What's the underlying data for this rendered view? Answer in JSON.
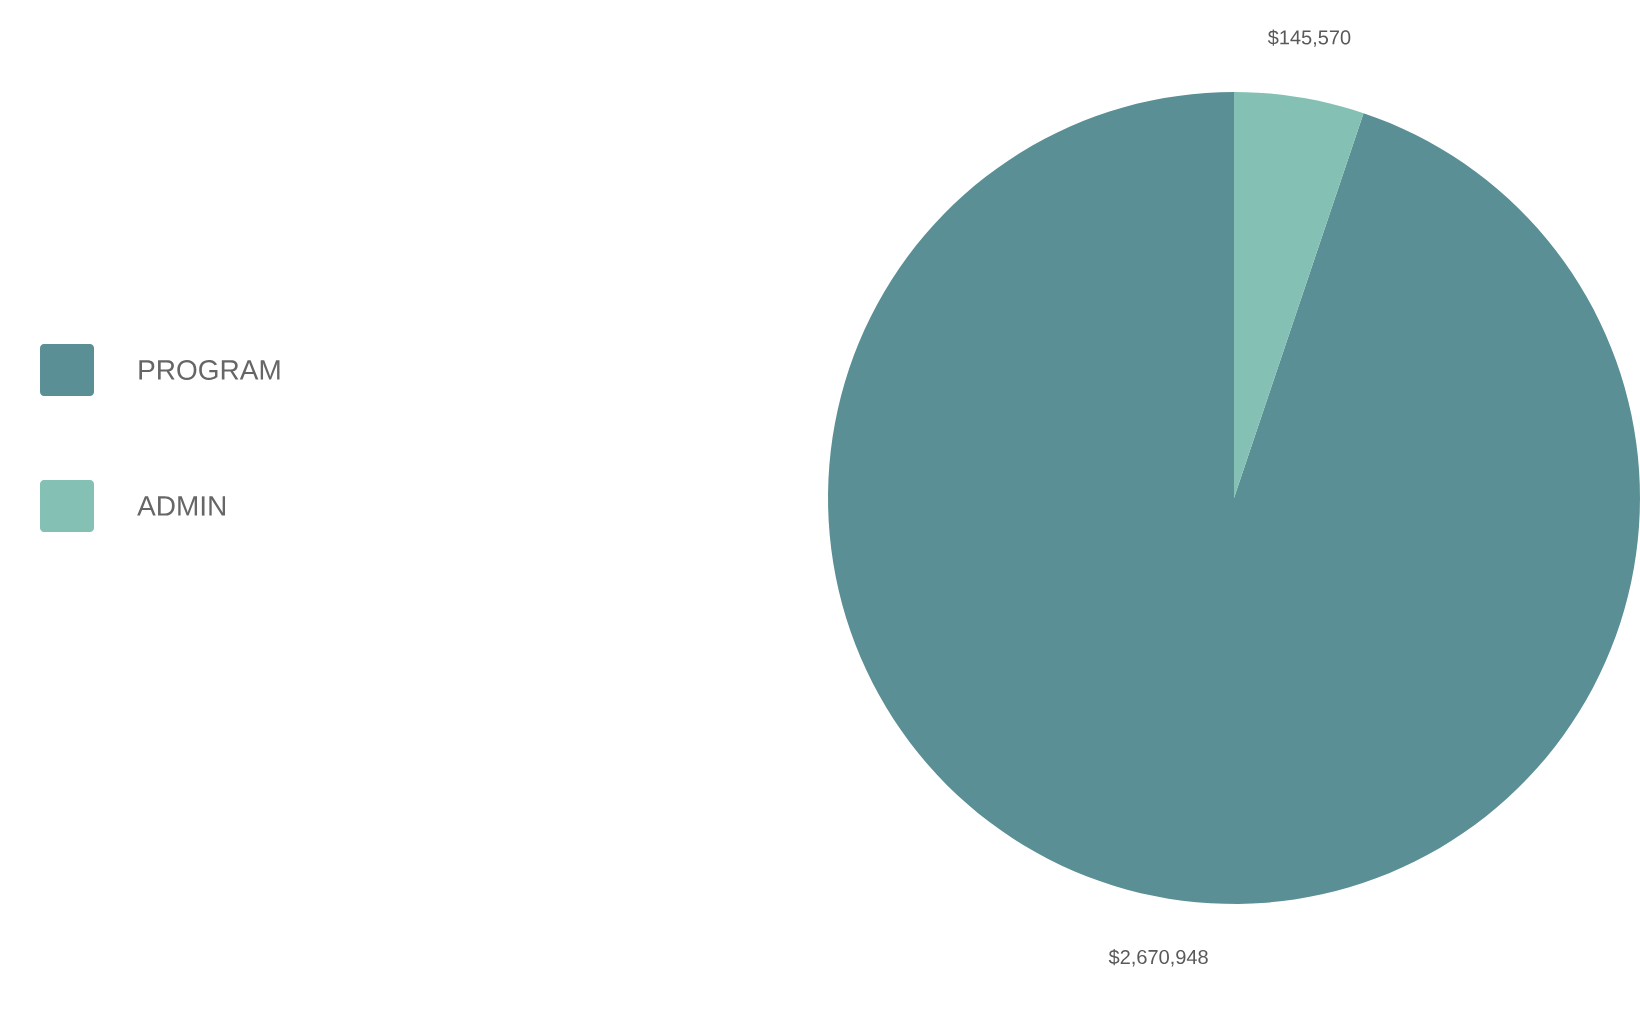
{
  "chart_data": {
    "type": "pie",
    "categories": [
      "PROGRAM",
      "ADMIN"
    ],
    "values": [
      2670948,
      145570
    ],
    "colors": [
      "#5a9095",
      "#84c0b4"
    ],
    "value_labels": [
      "$2,670,948",
      "$145,570"
    ],
    "legend": "left"
  }
}
